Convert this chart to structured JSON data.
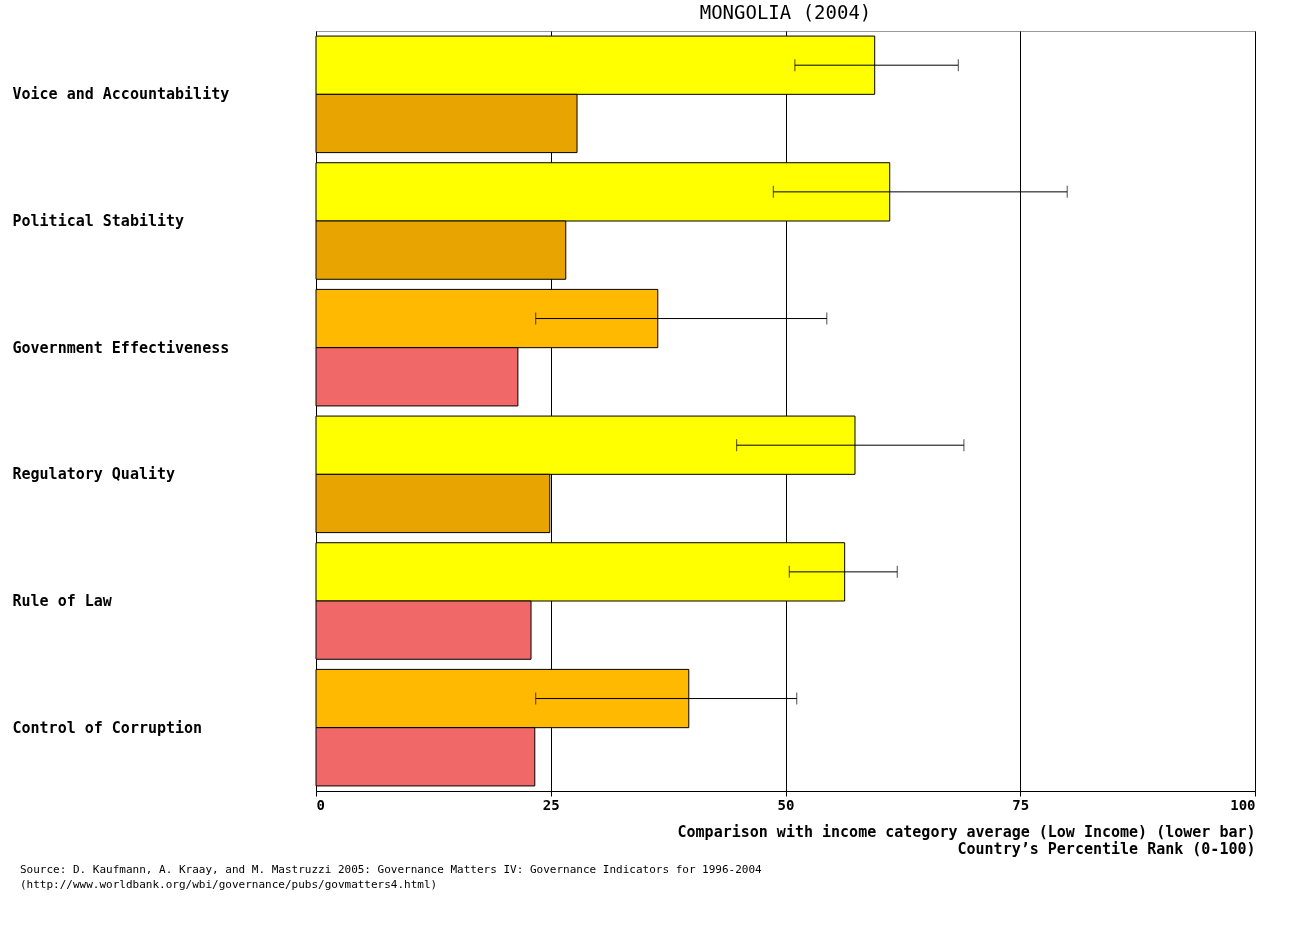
{
  "chart_data": {
    "type": "bar",
    "orientation": "horizontal",
    "title": "MONGOLIA (2004)",
    "xlabel": "Country’s Percentile Rank (0-100)",
    "categories": [
      "Voice and Accountability",
      "Political Stability",
      "Government Effectiveness",
      "Regulatory Quality",
      "Rule of Law",
      "Control of Corruption"
    ],
    "series": [
      {
        "colors": [
          "#ffff00",
          "#ffff00",
          "#ffb900",
          "#ffff00",
          "#ffff00",
          "#ffb900"
        ],
        "values": [
          59.5,
          61.1,
          36.4,
          57.4,
          56.3,
          39.7
        ],
        "errors": [
          [
            51.0,
            68.4
          ],
          [
            48.7,
            80.0
          ],
          [
            23.4,
            54.4
          ],
          [
            44.8,
            69.0
          ],
          [
            50.4,
            61.9
          ],
          [
            23.4,
            51.2
          ]
        ]
      },
      {
        "colors": [
          "#e8a400",
          "#e8a400",
          "#f06868",
          "#e8a400",
          "#f06868",
          "#f06868"
        ],
        "values": [
          27.8,
          26.6,
          21.5,
          24.9,
          22.9,
          23.3
        ]
      }
    ],
    "xlim": [
      0,
      100
    ],
    "xticks": [
      0,
      25,
      50,
      75,
      100
    ],
    "grid": "x",
    "annotations": [
      "Comparison with income category average (Low Income) (lower bar)",
      "Source: D. Kaufmann, A. Kraay, and M. Mastruzzi 2005: Governance Matters IV: Governance Indicators for 1996-2004",
      "(http://www.worldbank.org/wbi/governance/pubs/govmatters4.html)"
    ]
  }
}
